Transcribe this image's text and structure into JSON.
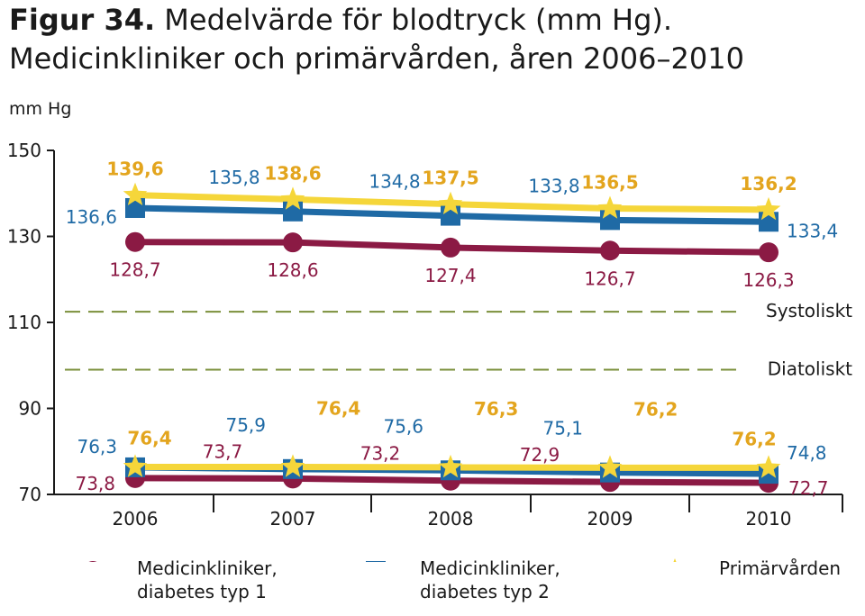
{
  "title_bold": "Figur 34.",
  "title_rest": " Medelvärde för blodtryck (mm Hg).",
  "subtitle": "Medicinkliniker och primärvården, åren 2006–2010",
  "unit": "mm Hg",
  "colors": {
    "red": "#8b1a44",
    "blue": "#1f6aa5",
    "yellow": "#f5d63a",
    "yellow_label": "#e3a51e",
    "dash": "#7a8f3a"
  },
  "chart_data": {
    "type": "line",
    "title": "Figur 34. Medelvärde för blodtryck (mm Hg). Medicinkliniker och primärvården, åren 2006–2010",
    "ylabel": "mm Hg",
    "xlabel": "",
    "ylim": [
      70,
      150
    ],
    "yticks": [
      70,
      90,
      110,
      130,
      150
    ],
    "x": [
      "2006",
      "2007",
      "2008",
      "2009",
      "2010"
    ],
    "grid": false,
    "legend_position": "bottom",
    "series": [
      {
        "name": "Medicinkliniker, diabetes typ 1",
        "group": "systolic",
        "color": "#8b1a44",
        "marker": "circle",
        "values": [
          128.7,
          128.6,
          127.4,
          126.7,
          126.3
        ],
        "labels": [
          "128,7",
          "128,6",
          "127,4",
          "126,7",
          "126,3"
        ]
      },
      {
        "name": "Medicinkliniker, diabetes typ 2",
        "group": "systolic",
        "color": "#1f6aa5",
        "marker": "square",
        "values": [
          136.6,
          135.8,
          134.8,
          133.8,
          133.4
        ],
        "labels": [
          "136,6",
          "135,8",
          "134,8",
          "133,8",
          "133,4"
        ]
      },
      {
        "name": "Primärvården",
        "group": "systolic",
        "color": "#f5d63a",
        "marker": "star",
        "values": [
          139.6,
          138.6,
          137.5,
          136.5,
          136.2
        ],
        "labels": [
          "139,6",
          "138,6",
          "137,5",
          "136,5",
          "136,2"
        ]
      },
      {
        "name": "Medicinkliniker, diabetes typ 1",
        "group": "diastolic",
        "color": "#8b1a44",
        "marker": "circle",
        "values": [
          73.8,
          73.7,
          73.2,
          72.9,
          72.7
        ],
        "labels": [
          "73,8",
          "73,7",
          "73,2",
          "72,9",
          "72,7"
        ]
      },
      {
        "name": "Medicinkliniker, diabetes typ 2",
        "group": "diastolic",
        "color": "#1f6aa5",
        "marker": "square",
        "values": [
          76.3,
          75.9,
          75.6,
          75.1,
          74.8
        ],
        "labels": [
          "76,3",
          "75,9",
          "75,6",
          "75,1",
          "74,8"
        ]
      },
      {
        "name": "Primärvården",
        "group": "diastolic",
        "color": "#f5d63a",
        "marker": "star",
        "values": [
          76.4,
          76.4,
          76.3,
          76.2,
          76.2
        ],
        "labels": [
          "76,4",
          "76,4",
          "76,3",
          "76,2",
          "76,2"
        ]
      }
    ],
    "reference_lines": [
      {
        "label": "Systoliskt",
        "value": 112.5
      },
      {
        "label": "Diatoliskt",
        "value": 99
      }
    ]
  },
  "legend": [
    {
      "label": "Medicinkliniker,\ndiabetes typ 1",
      "color": "#8b1a44",
      "marker": "circle"
    },
    {
      "label": "Medicinkliniker,\ndiabetes typ 2",
      "color": "#1f6aa5",
      "marker": "square"
    },
    {
      "label": "Primärvården",
      "color": "#f5d63a",
      "marker": "star"
    }
  ]
}
